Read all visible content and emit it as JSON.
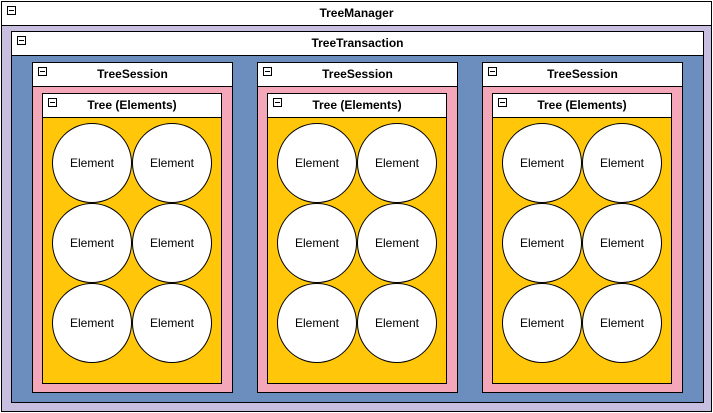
{
  "manager": {
    "title": "TreeManager"
  },
  "transaction": {
    "title": "TreeTransaction"
  },
  "sessions": [
    {
      "title": "TreeSession",
      "tree_title": "Tree (Elements)",
      "elements": [
        "Element",
        "Element",
        "Element",
        "Element",
        "Element",
        "Element"
      ]
    },
    {
      "title": "TreeSession",
      "tree_title": "Tree (Elements)",
      "elements": [
        "Element",
        "Element",
        "Element",
        "Element",
        "Element",
        "Element"
      ]
    },
    {
      "title": "TreeSession",
      "tree_title": "Tree (Elements)",
      "elements": [
        "Element",
        "Element",
        "Element",
        "Element",
        "Element",
        "Element"
      ]
    }
  ],
  "colors": {
    "manager_fill": "#c8bfe0",
    "transaction_fill": "#6c8ebf",
    "session_fill": "#f4a7b9",
    "tree_fill": "#ffc60a",
    "element_fill": "#ffffff"
  }
}
